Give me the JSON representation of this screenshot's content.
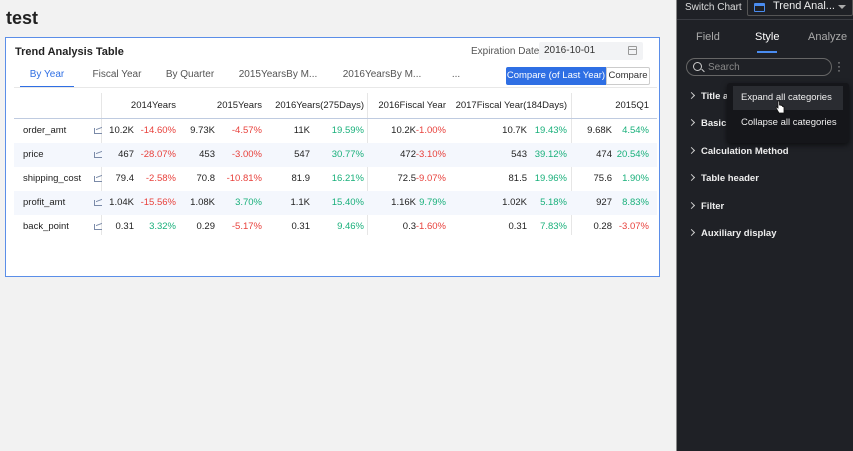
{
  "page": {
    "title": "test"
  },
  "card": {
    "title": "Trend Analysis Table",
    "expiration_label": "Expiration Date",
    "expiration_value": "2016-10-01",
    "tabs": [
      {
        "label": "By Year",
        "active": true
      },
      {
        "label": "Fiscal Year"
      },
      {
        "label": "By Quarter"
      },
      {
        "label": "2015YearsBy M..."
      },
      {
        "label": "2016YearsBy M..."
      },
      {
        "label": "..."
      }
    ],
    "compare_active_label": "Compare (of Last Year)",
    "compare_label": "Compare"
  },
  "table": {
    "columns": [
      "2014Years",
      "2015Years",
      "2016Years(275Days)",
      "2016Fiscal Year",
      "2017Fiscal Year(184Days)",
      "2015Q1"
    ],
    "rows": [
      {
        "label": "order_amt",
        "cells": [
          {
            "v": "10.2K",
            "p": "-14.60%",
            "s": "neg"
          },
          {
            "v": "9.73K",
            "p": "-4.57%",
            "s": "neg"
          },
          {
            "v": "11K",
            "p": "19.59%",
            "s": "pos"
          },
          {
            "v": "10.2K",
            "p": "-1.00%",
            "s": "neg"
          },
          {
            "v": "10.7K",
            "p": "19.43%",
            "s": "pos"
          },
          {
            "v": "9.68K",
            "p": "4.54%",
            "s": "pos"
          }
        ]
      },
      {
        "label": "price",
        "cells": [
          {
            "v": "467",
            "p": "-28.07%",
            "s": "neg"
          },
          {
            "v": "453",
            "p": "-3.00%",
            "s": "neg"
          },
          {
            "v": "547",
            "p": "30.77%",
            "s": "pos"
          },
          {
            "v": "472",
            "p": "-3.10%",
            "s": "neg"
          },
          {
            "v": "543",
            "p": "39.12%",
            "s": "pos"
          },
          {
            "v": "474",
            "p": "20.54%",
            "s": "pos"
          }
        ]
      },
      {
        "label": "shipping_cost",
        "cells": [
          {
            "v": "79.4",
            "p": "-2.58%",
            "s": "neg"
          },
          {
            "v": "70.8",
            "p": "-10.81%",
            "s": "neg"
          },
          {
            "v": "81.9",
            "p": "16.21%",
            "s": "pos"
          },
          {
            "v": "72.5",
            "p": "-9.07%",
            "s": "neg"
          },
          {
            "v": "81.5",
            "p": "19.96%",
            "s": "pos"
          },
          {
            "v": "75.6",
            "p": "1.90%",
            "s": "pos"
          }
        ]
      },
      {
        "label": "profit_amt",
        "cells": [
          {
            "v": "1.04K",
            "p": "-15.56%",
            "s": "neg"
          },
          {
            "v": "1.08K",
            "p": "3.70%",
            "s": "pos"
          },
          {
            "v": "1.1K",
            "p": "15.40%",
            "s": "pos"
          },
          {
            "v": "1.16K",
            "p": "9.79%",
            "s": "pos"
          },
          {
            "v": "1.02K",
            "p": "5.18%",
            "s": "pos"
          },
          {
            "v": "927",
            "p": "8.83%",
            "s": "pos"
          }
        ]
      },
      {
        "label": "back_point",
        "cells": [
          {
            "v": "0.31",
            "p": "3.32%",
            "s": "pos"
          },
          {
            "v": "0.29",
            "p": "-5.17%",
            "s": "neg"
          },
          {
            "v": "0.31",
            "p": "9.46%",
            "s": "pos"
          },
          {
            "v": "0.3",
            "p": "-1.60%",
            "s": "neg"
          },
          {
            "v": "0.31",
            "p": "7.83%",
            "s": "pos"
          },
          {
            "v": "0.28",
            "p": "-3.07%",
            "s": "neg"
          }
        ]
      }
    ]
  },
  "panel": {
    "switch_chart_label": "Switch Chart",
    "chart_type": "Trend Anal...",
    "tabs": [
      {
        "label": "Field"
      },
      {
        "label": "Style",
        "active": true
      },
      {
        "label": "Analyze"
      }
    ],
    "search_placeholder": "Search",
    "sections": [
      "Title a",
      "Basic",
      "Calculation Method",
      "Table header",
      "Filter",
      "Auxiliary display"
    ],
    "dropdown": [
      "Expand all categories",
      "Collapse all categories"
    ]
  },
  "colors": {
    "accent": "#2f6fe4",
    "negative": "#e8413c",
    "positive": "#19b07b"
  }
}
